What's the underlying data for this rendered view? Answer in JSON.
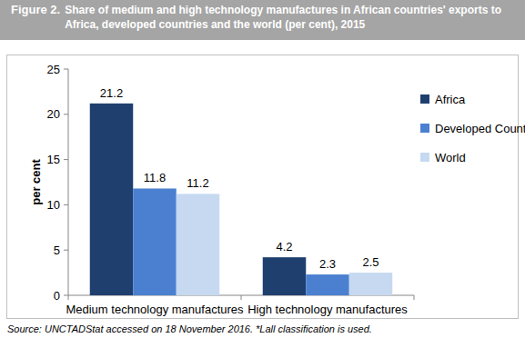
{
  "chart_data": {
    "type": "bar",
    "figure_label": "Figure 2.",
    "title": "Share of medium and high technology manufactures in African countries' exports to Africa, developed countries and the world (per cent), 2015",
    "y_label": "per cent",
    "source": "Source: UNCTADStat accessed on 18 November 2016. *Lall classification is used.",
    "categories": [
      "Medium technology manufactures",
      "High technology manufactures"
    ],
    "series": [
      {
        "name": "Africa",
        "color": "#1f3f6f",
        "values": [
          21.2,
          4.2
        ]
      },
      {
        "name": "Developed Countries",
        "color": "#4b80d0",
        "values": [
          11.8,
          2.3
        ]
      },
      {
        "name": "World",
        "color": "#c6d9f1",
        "values": [
          11.2,
          2.5
        ]
      }
    ],
    "ylim": [
      0,
      25
    ],
    "yticks": [
      0,
      5,
      10,
      15,
      20,
      25
    ],
    "grid": false,
    "legend": "right",
    "data_labels": true
  }
}
